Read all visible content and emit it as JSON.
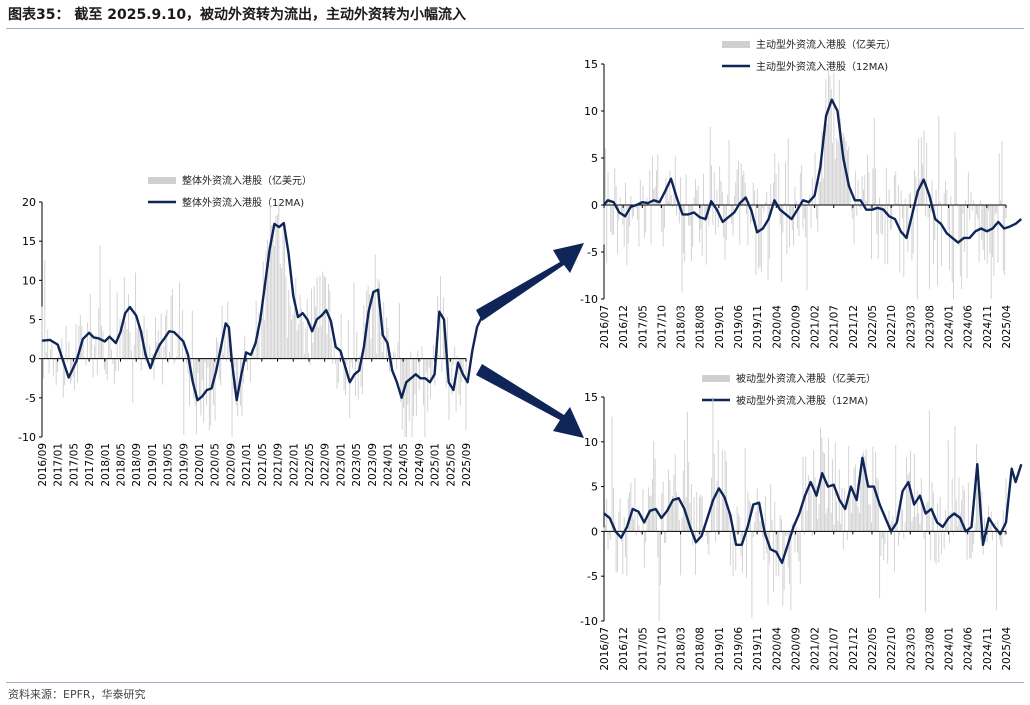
{
  "header": {
    "title": "图表35：  截至 2025.9.10，被动外资转为流出，主动外资转为小幅流入"
  },
  "footer": {
    "source": "资料来源：EPFR，华泰研究"
  },
  "colors": {
    "line": "#0f2557",
    "bar": "#cfcfcf",
    "arrow": "#0f2557",
    "axis": "#000000",
    "rule": "#9fb3c8"
  },
  "chart_data": [
    {
      "id": "total",
      "type": "bar+line",
      "title": "",
      "legend": [
        "整体外资流入港股（亿美元）",
        "整体外资流入港股（12MA)"
      ],
      "ylim": [
        -10,
        20
      ],
      "yticks": [
        "20",
        "15",
        "10",
        "5",
        "0",
        "-5",
        "-10"
      ],
      "xlabels": [
        "2016/09",
        "2017/01",
        "2017/05",
        "2017/09",
        "2018/01",
        "2018/05",
        "2018/09",
        "2019/01",
        "2019/05",
        "2019/09",
        "2020/01",
        "2020/05",
        "2020/09",
        "2021/01",
        "2021/05",
        "2021/09",
        "2022/01",
        "2022/05",
        "2022/09",
        "2023/01",
        "2023/05",
        "2023/09",
        "2024/01",
        "2024/05",
        "2024/09",
        "2025/01",
        "2025/05",
        "2025/09"
      ],
      "series_12ma_points": [
        [
          0,
          2.3
        ],
        [
          0.5,
          2.4
        ],
        [
          1,
          1.8
        ],
        [
          1.3,
          0
        ],
        [
          1.7,
          -2.4
        ],
        [
          2.2,
          -0.3
        ],
        [
          2.6,
          2.5
        ],
        [
          3,
          3.3
        ],
        [
          3.3,
          2.7
        ],
        [
          3.6,
          2.6
        ],
        [
          4,
          2.2
        ],
        [
          4.3,
          2.8
        ],
        [
          4.7,
          2
        ],
        [
          5,
          3.4
        ],
        [
          5.3,
          5.8
        ],
        [
          5.6,
          6.6
        ],
        [
          6,
          5.5
        ],
        [
          6.3,
          3.5
        ],
        [
          6.6,
          0.5
        ],
        [
          6.9,
          -1.2
        ],
        [
          7.2,
          0.5
        ],
        [
          7.5,
          1.8
        ],
        [
          7.8,
          2.6
        ],
        [
          8.1,
          3.5
        ],
        [
          8.4,
          3.4
        ],
        [
          8.7,
          2.8
        ],
        [
          9,
          2.2
        ],
        [
          9.3,
          0.5
        ],
        [
          9.6,
          -3
        ],
        [
          9.9,
          -5.3
        ],
        [
          10.2,
          -4.8
        ],
        [
          10.5,
          -4
        ],
        [
          10.8,
          -3.8
        ],
        [
          11.1,
          -1.5
        ],
        [
          11.4,
          1.5
        ],
        [
          11.7,
          4.5
        ],
        [
          11.9,
          4
        ],
        [
          12.1,
          -0.5
        ],
        [
          12.4,
          -5.3
        ],
        [
          12.7,
          -2
        ],
        [
          13,
          0.8
        ],
        [
          13.3,
          0.5
        ],
        [
          13.6,
          2
        ],
        [
          13.9,
          5
        ],
        [
          14.2,
          9.5
        ],
        [
          14.5,
          14
        ],
        [
          14.8,
          17.2
        ],
        [
          15.1,
          16.8
        ],
        [
          15.4,
          17.3
        ],
        [
          15.7,
          13.5
        ],
        [
          16,
          8
        ],
        [
          16.3,
          5.3
        ],
        [
          16.6,
          5.8
        ],
        [
          16.9,
          5
        ],
        [
          17.2,
          3.5
        ],
        [
          17.5,
          5
        ],
        [
          17.8,
          5.5
        ],
        [
          18.1,
          6.2
        ],
        [
          18.4,
          4.8
        ],
        [
          18.7,
          1.5
        ],
        [
          19,
          1
        ],
        [
          19.3,
          -1
        ],
        [
          19.6,
          -3
        ],
        [
          19.9,
          -2
        ],
        [
          20.2,
          -1.5
        ],
        [
          20.5,
          1.5
        ],
        [
          20.8,
          6
        ],
        [
          21.1,
          8.5
        ],
        [
          21.4,
          8.8
        ],
        [
          21.7,
          3
        ],
        [
          22,
          2
        ],
        [
          22.3,
          -1.5
        ],
        [
          22.6,
          -3
        ],
        [
          22.9,
          -5
        ],
        [
          23.2,
          -3
        ],
        [
          23.5,
          -2.5
        ],
        [
          23.8,
          -2
        ],
        [
          24.1,
          -2.5
        ],
        [
          24.4,
          -2.5
        ],
        [
          24.7,
          -3
        ],
        [
          25,
          -2
        ],
        [
          25.3,
          6
        ],
        [
          25.6,
          5
        ],
        [
          25.9,
          -3
        ],
        [
          26.2,
          -4
        ],
        [
          26.5,
          -0.5
        ],
        [
          26.8,
          -2
        ],
        [
          27.1,
          -3
        ],
        [
          27.4,
          1
        ],
        [
          27.7,
          4
        ],
        [
          28,
          5.3
        ]
      ],
      "bars_source": "weekly flows (thin grey bars, range approx -10 to 20)"
    },
    {
      "id": "active",
      "type": "bar+line",
      "legend": [
        "主动型外资流入港股（亿美元）",
        "主动型外资流入港股（12MA)"
      ],
      "ylim": [
        -10,
        15
      ],
      "yticks": [
        "15",
        "10",
        "5",
        "0",
        "-5",
        "-10"
      ],
      "xlabels": [
        "2016/07",
        "2016/12",
        "2017/05",
        "2017/10",
        "2018/03",
        "2018/08",
        "2019/01",
        "2019/06",
        "2019/11",
        "2020/04",
        "2020/09",
        "2021/02",
        "2021/07",
        "2021/12",
        "2022/05",
        "2022/10",
        "2023/03",
        "2023/08",
        "2024/01",
        "2024/06",
        "2024/11",
        "2025/04"
      ],
      "series_12ma_points": [
        [
          0,
          0
        ],
        [
          0.2,
          0.5
        ],
        [
          0.5,
          0.3
        ],
        [
          0.8,
          -0.8
        ],
        [
          1.1,
          -1.2
        ],
        [
          1.4,
          -0.2
        ],
        [
          1.7,
          0
        ],
        [
          2,
          0.3
        ],
        [
          2.3,
          0.2
        ],
        [
          2.6,
          0.5
        ],
        [
          2.9,
          0.3
        ],
        [
          3.2,
          1.5
        ],
        [
          3.5,
          2.8
        ],
        [
          3.8,
          0.8
        ],
        [
          4.1,
          -1
        ],
        [
          4.4,
          -1
        ],
        [
          4.7,
          -0.8
        ],
        [
          5,
          -1.3
        ],
        [
          5.3,
          -1.5
        ],
        [
          5.6,
          0.4
        ],
        [
          5.9,
          -0.5
        ],
        [
          6.2,
          -1.8
        ],
        [
          6.5,
          -1.3
        ],
        [
          6.8,
          -0.8
        ],
        [
          7.1,
          0.2
        ],
        [
          7.4,
          0.8
        ],
        [
          7.7,
          -0.6
        ],
        [
          8,
          -2.9
        ],
        [
          8.3,
          -2.5
        ],
        [
          8.6,
          -1.5
        ],
        [
          8.9,
          0.5
        ],
        [
          9.2,
          -0.5
        ],
        [
          9.5,
          -1
        ],
        [
          9.8,
          -1.5
        ],
        [
          10.1,
          -0.5
        ],
        [
          10.4,
          0.5
        ],
        [
          10.7,
          0.3
        ],
        [
          11,
          1
        ],
        [
          11.3,
          4
        ],
        [
          11.6,
          9.5
        ],
        [
          11.9,
          11.2
        ],
        [
          12.2,
          10
        ],
        [
          12.5,
          5
        ],
        [
          12.8,
          2
        ],
        [
          13.1,
          0.5
        ],
        [
          13.4,
          0.5
        ],
        [
          13.7,
          -0.5
        ],
        [
          14,
          -0.5
        ],
        [
          14.3,
          -0.3
        ],
        [
          14.6,
          -0.5
        ],
        [
          14.9,
          -1.2
        ],
        [
          15.2,
          -1.5
        ],
        [
          15.5,
          -2.8
        ],
        [
          15.8,
          -3.5
        ],
        [
          16.1,
          -1
        ],
        [
          16.4,
          1.5
        ],
        [
          16.7,
          2.7
        ],
        [
          17,
          1
        ],
        [
          17.3,
          -1.5
        ],
        [
          17.6,
          -2
        ],
        [
          17.9,
          -3
        ],
        [
          18.2,
          -3.5
        ],
        [
          18.5,
          -4
        ],
        [
          18.8,
          -3.5
        ],
        [
          19.1,
          -3.5
        ],
        [
          19.4,
          -2.8
        ],
        [
          19.7,
          -2.5
        ],
        [
          20,
          -2.8
        ],
        [
          20.3,
          -2.5
        ],
        [
          20.6,
          -1.8
        ],
        [
          20.9,
          -2.5
        ],
        [
          21.2,
          -2.3
        ],
        [
          21.5,
          -2
        ],
        [
          21.8,
          -1.5
        ]
      ]
    },
    {
      "id": "passive",
      "type": "bar+line",
      "legend": [
        "被动型外资流入港股（亿美元）",
        "被动型外资流入港股（12MA)"
      ],
      "ylim": [
        -10,
        15
      ],
      "yticks": [
        "15",
        "10",
        "5",
        "0",
        "-5",
        "-10"
      ],
      "xlabels": [
        "2016/07",
        "2016/12",
        "2017/05",
        "2017/10",
        "2018/03",
        "2018/08",
        "2019/01",
        "2019/06",
        "2019/11",
        "2020/04",
        "2020/09",
        "2021/02",
        "2021/07",
        "2021/12",
        "2022/05",
        "2022/10",
        "2023/03",
        "2023/08",
        "2024/01",
        "2024/06",
        "2024/11",
        "2025/04"
      ],
      "series_12ma_points": [
        [
          0,
          2
        ],
        [
          0.3,
          1.5
        ],
        [
          0.6,
          0
        ],
        [
          0.9,
          -0.7
        ],
        [
          1.2,
          0.5
        ],
        [
          1.5,
          2.5
        ],
        [
          1.8,
          2.2
        ],
        [
          2.1,
          1
        ],
        [
          2.4,
          2.3
        ],
        [
          2.7,
          2.5
        ],
        [
          3,
          1.5
        ],
        [
          3.3,
          2.3
        ],
        [
          3.6,
          3.5
        ],
        [
          3.9,
          3.7
        ],
        [
          4.2,
          2.5
        ],
        [
          4.5,
          0.5
        ],
        [
          4.8,
          -1.2
        ],
        [
          5.1,
          -0.5
        ],
        [
          5.4,
          1.5
        ],
        [
          5.7,
          3.5
        ],
        [
          6,
          4.8
        ],
        [
          6.3,
          3.8
        ],
        [
          6.6,
          1.8
        ],
        [
          6.9,
          -1.5
        ],
        [
          7.2,
          -1.5
        ],
        [
          7.5,
          0.5
        ],
        [
          7.8,
          3
        ],
        [
          8.1,
          3.2
        ],
        [
          8.4,
          -0.2
        ],
        [
          8.7,
          -2
        ],
        [
          9,
          -2.3
        ],
        [
          9.3,
          -3.5
        ],
        [
          9.6,
          -1.5
        ],
        [
          9.9,
          0.5
        ],
        [
          10.2,
          2
        ],
        [
          10.5,
          4
        ],
        [
          10.8,
          5.5
        ],
        [
          11.1,
          4
        ],
        [
          11.4,
          6.5
        ],
        [
          11.7,
          5
        ],
        [
          12,
          5.2
        ],
        [
          12.3,
          3.5
        ],
        [
          12.6,
          2.5
        ],
        [
          12.9,
          5
        ],
        [
          13.2,
          3.5
        ],
        [
          13.5,
          8.2
        ],
        [
          13.8,
          5
        ],
        [
          14.1,
          5
        ],
        [
          14.4,
          3
        ],
        [
          14.7,
          1.5
        ],
        [
          15,
          0
        ],
        [
          15.3,
          1
        ],
        [
          15.6,
          4.5
        ],
        [
          15.9,
          5.5
        ],
        [
          16.2,
          3
        ],
        [
          16.5,
          4
        ],
        [
          16.8,
          2
        ],
        [
          17.1,
          2.5
        ],
        [
          17.4,
          1
        ],
        [
          17.7,
          0.5
        ],
        [
          18,
          1.5
        ],
        [
          18.3,
          2
        ],
        [
          18.6,
          1.5
        ],
        [
          18.9,
          0
        ],
        [
          19.2,
          0.5
        ],
        [
          19.5,
          7.5
        ],
        [
          19.8,
          -1.5
        ],
        [
          20.1,
          1.5
        ],
        [
          20.4,
          0.5
        ],
        [
          20.7,
          -0.3
        ],
        [
          21,
          1
        ],
        [
          21.3,
          7
        ],
        [
          21.5,
          5.5
        ],
        [
          21.8,
          7.5
        ]
      ]
    }
  ]
}
